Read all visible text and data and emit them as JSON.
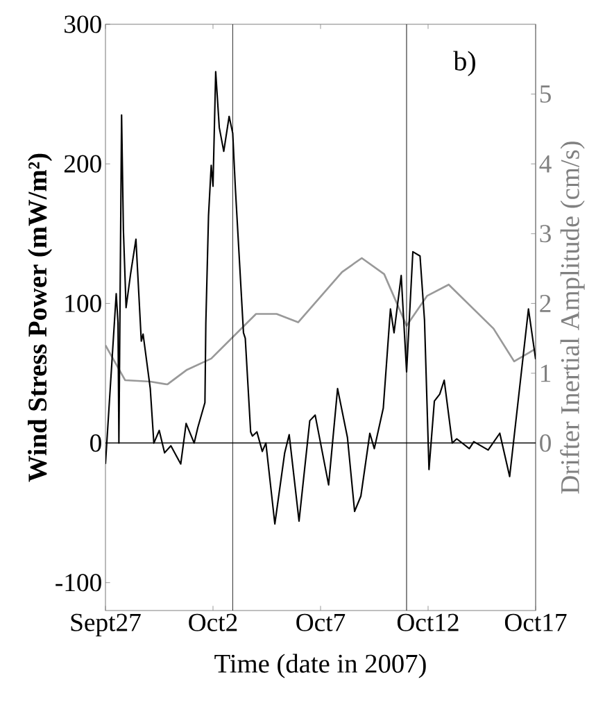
{
  "chart_data": {
    "type": "line",
    "xlabel": "Time (date in 2007)",
    "ylabel": "Wind Stress Power (mW/m²)",
    "y2label": "Drifter Inertial Amplitude (cm/s)",
    "annotations": [
      "b)"
    ],
    "xlim": [
      "2007-09-27",
      "2007-10-17"
    ],
    "xticks": [
      {
        "value": "2007-09-27",
        "label": "Sept27"
      },
      {
        "value": "2007-10-02",
        "label": "Oct2"
      },
      {
        "value": "2007-10-07",
        "label": "Oct7"
      },
      {
        "value": "2007-10-12",
        "label": "Oct12"
      },
      {
        "value": "2007-10-17",
        "label": "Oct17"
      }
    ],
    "ylim": [
      -120,
      300
    ],
    "yticks": [
      -100,
      0,
      100,
      200,
      300
    ],
    "y2lim": [
      -2.4,
      6
    ],
    "y2ticks": [
      0,
      1,
      2,
      3,
      4,
      5
    ],
    "ref_lines": [
      {
        "axis": "y",
        "value": 0,
        "color": "#000000"
      },
      {
        "axis": "x",
        "value": "2007-10-02T22:00",
        "color": "#000000"
      },
      {
        "axis": "x",
        "value": "2007-10-11T00:00",
        "color": "#000000"
      }
    ],
    "series": [
      {
        "color": "#000000",
        "x": [
          "2007-09-27T00:00",
          "2007-09-27T12:00",
          "2007-09-27T14:00",
          "2007-09-27T15:00",
          "2007-09-27T18:00",
          "2007-09-27T20:00",
          "2007-09-27T23:00",
          "2007-09-28T04:00",
          "2007-09-28T10:00",
          "2007-09-28T16:00",
          "2007-09-28T18:00",
          "2007-09-29T02:00",
          "2007-09-29T06:00",
          "2007-09-29T12:00",
          "2007-09-29T18:00",
          "2007-09-30T01:00",
          "2007-09-30T12:00",
          "2007-09-30T18:00",
          "2007-10-01T03:00",
          "2007-10-01T07:00",
          "2007-10-01T15:00",
          "2007-10-01T16:00",
          "2007-10-01T19:00",
          "2007-10-01T22:00",
          "2007-10-02T00:00",
          "2007-10-02T03:00",
          "2007-10-02T07:00",
          "2007-10-02T12:00",
          "2007-10-02T18:00",
          "2007-10-02T22:00",
          "2007-10-03T01:00",
          "2007-10-03T10:00",
          "2007-10-03T12:00",
          "2007-10-03T18:00",
          "2007-10-03T20:00",
          "2007-10-04T01:00",
          "2007-10-04T07:00",
          "2007-10-04T11:00",
          "2007-10-04T21:00",
          "2007-10-05T08:00",
          "2007-10-05T13:00",
          "2007-10-06T00:00",
          "2007-10-06T12:00",
          "2007-10-06T18:00",
          "2007-10-07T09:00",
          "2007-10-07T19:00",
          "2007-10-08T06:00",
          "2007-10-08T14:00",
          "2007-10-08T21:00",
          "2007-10-09T07:00",
          "2007-10-09T12:00",
          "2007-10-09T22:00",
          "2007-10-10T06:00",
          "2007-10-10T10:00",
          "2007-10-10T18:00",
          "2007-10-11T00:00",
          "2007-10-11T07:00",
          "2007-10-11T15:00",
          "2007-10-11T20:00",
          "2007-10-12T01:00",
          "2007-10-12T07:00",
          "2007-10-12T13:00",
          "2007-10-12T18:00",
          "2007-10-13T03:00",
          "2007-10-13T08:00",
          "2007-10-13T22:00",
          "2007-10-14T03:00",
          "2007-10-14T19:00",
          "2007-10-15T08:00",
          "2007-10-15T19:00",
          "2007-10-16T16:00",
          "2007-10-17T00:00"
        ],
        "values": [
          -15,
          107,
          86,
          0,
          235,
          153,
          97,
          121,
          146,
          73,
          78,
          39,
          0,
          9,
          -7,
          -2,
          -15,
          14,
          0,
          11,
          29,
          86,
          163,
          199,
          184,
          266,
          226,
          209,
          234,
          222,
          182,
          79,
          75,
          8,
          5,
          8,
          -6,
          0,
          -58,
          -7,
          6,
          -56,
          16,
          20,
          -30,
          39,
          4,
          -49,
          -38,
          7,
          -4,
          25,
          96,
          79,
          120,
          51,
          137,
          134,
          88,
          -19,
          30,
          35,
          45,
          0,
          3,
          -4,
          1,
          -5,
          7,
          -24,
          96,
          60
        ]
      },
      {
        "color": "#999999",
        "axis": "y2",
        "x": [
          "2007-09-27T00:00",
          "2007-09-27T22:00",
          "2007-09-29T02:00",
          "2007-09-29T21:00",
          "2007-09-30T19:00",
          "2007-10-01T22:00",
          "2007-10-04T00:00",
          "2007-10-04T23:00",
          "2007-10-05T23:00",
          "2007-10-08T00:00",
          "2007-10-08T22:00",
          "2007-10-09T23:00",
          "2007-10-11T00:00",
          "2007-10-11T23:00",
          "2007-10-12T23:00",
          "2007-10-15T01:00",
          "2007-10-16T00:00",
          "2007-10-17T00:00"
        ],
        "values": [
          1.4,
          0.9,
          0.88,
          0.84,
          1.05,
          1.21,
          1.85,
          1.85,
          1.73,
          2.45,
          2.65,
          2.42,
          1.68,
          2.11,
          2.27,
          1.64,
          1.17,
          1.35
        ]
      }
    ]
  }
}
